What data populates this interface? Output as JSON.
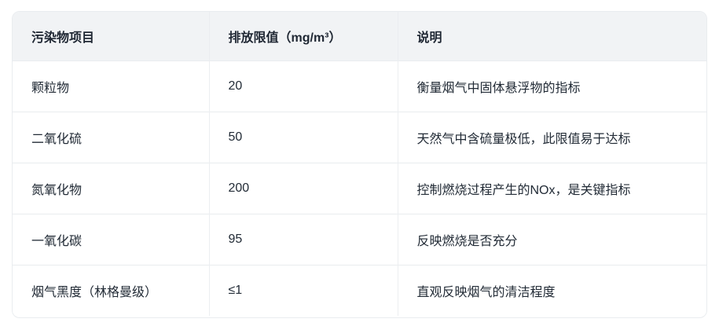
{
  "chart_data": {
    "type": "table",
    "title": "",
    "columns": [
      "污染物项目",
      "排放限值（mg/m³）",
      "说明"
    ],
    "rows": [
      [
        "颗粒物",
        "20",
        "衡量烟气中固体悬浮物的指标"
      ],
      [
        "二氧化硫",
        "50",
        "天然气中含硫量极低，此限值易于达标"
      ],
      [
        "氮氧化物",
        "200",
        "控制燃烧过程产生的NOx，是关键指标"
      ],
      [
        "一氧化碳",
        "95",
        "反映燃烧是否充分"
      ],
      [
        "烟气黑度（林格曼级）",
        "≤1",
        "直观反映烟气的清洁程度"
      ]
    ],
    "layout": {
      "header_background": "#f1f3f5",
      "border_color": "#e9ecef",
      "text_color": "#222b36",
      "header_text_color": "#1f2733",
      "grid": true
    }
  }
}
